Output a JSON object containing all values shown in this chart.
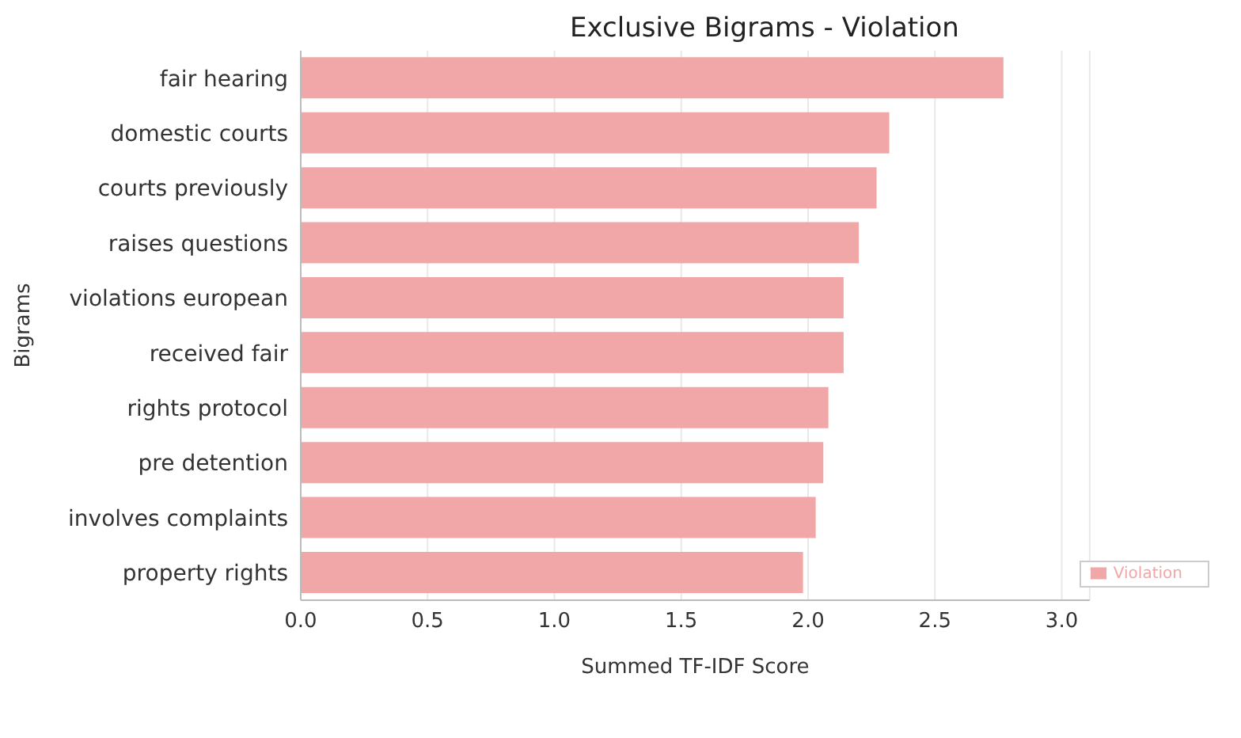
{
  "chart_data": {
    "type": "bar",
    "orientation": "horizontal",
    "title": "Exclusive Bigrams - Violation",
    "xlabel": "Summed TF-IDF Score",
    "ylabel": "Bigrams",
    "categories": [
      "fair hearing",
      "domestic courts",
      "courts previously",
      "raises questions",
      "violations european",
      "received fair",
      "rights protocol",
      "pre detention",
      "involves complaints",
      "property rights"
    ],
    "series": [
      {
        "name": "Violation",
        "color": "#f1a7a7",
        "values": [
          2.77,
          2.32,
          2.27,
          2.2,
          2.14,
          2.14,
          2.08,
          2.06,
          2.03,
          1.98
        ]
      }
    ],
    "xlim": [
      0,
      3.11
    ],
    "xticks": [
      {
        "value": 0,
        "label": "0.0"
      },
      {
        "value": 0.5,
        "label": "0.5"
      },
      {
        "value": 1,
        "label": "1.0"
      },
      {
        "value": 1.5,
        "label": "1.5"
      },
      {
        "value": 2,
        "label": "2.0"
      },
      {
        "value": 2.5,
        "label": "2.5"
      },
      {
        "value": 3,
        "label": "3.0"
      }
    ],
    "grid": "x",
    "legend": "bottom right"
  }
}
